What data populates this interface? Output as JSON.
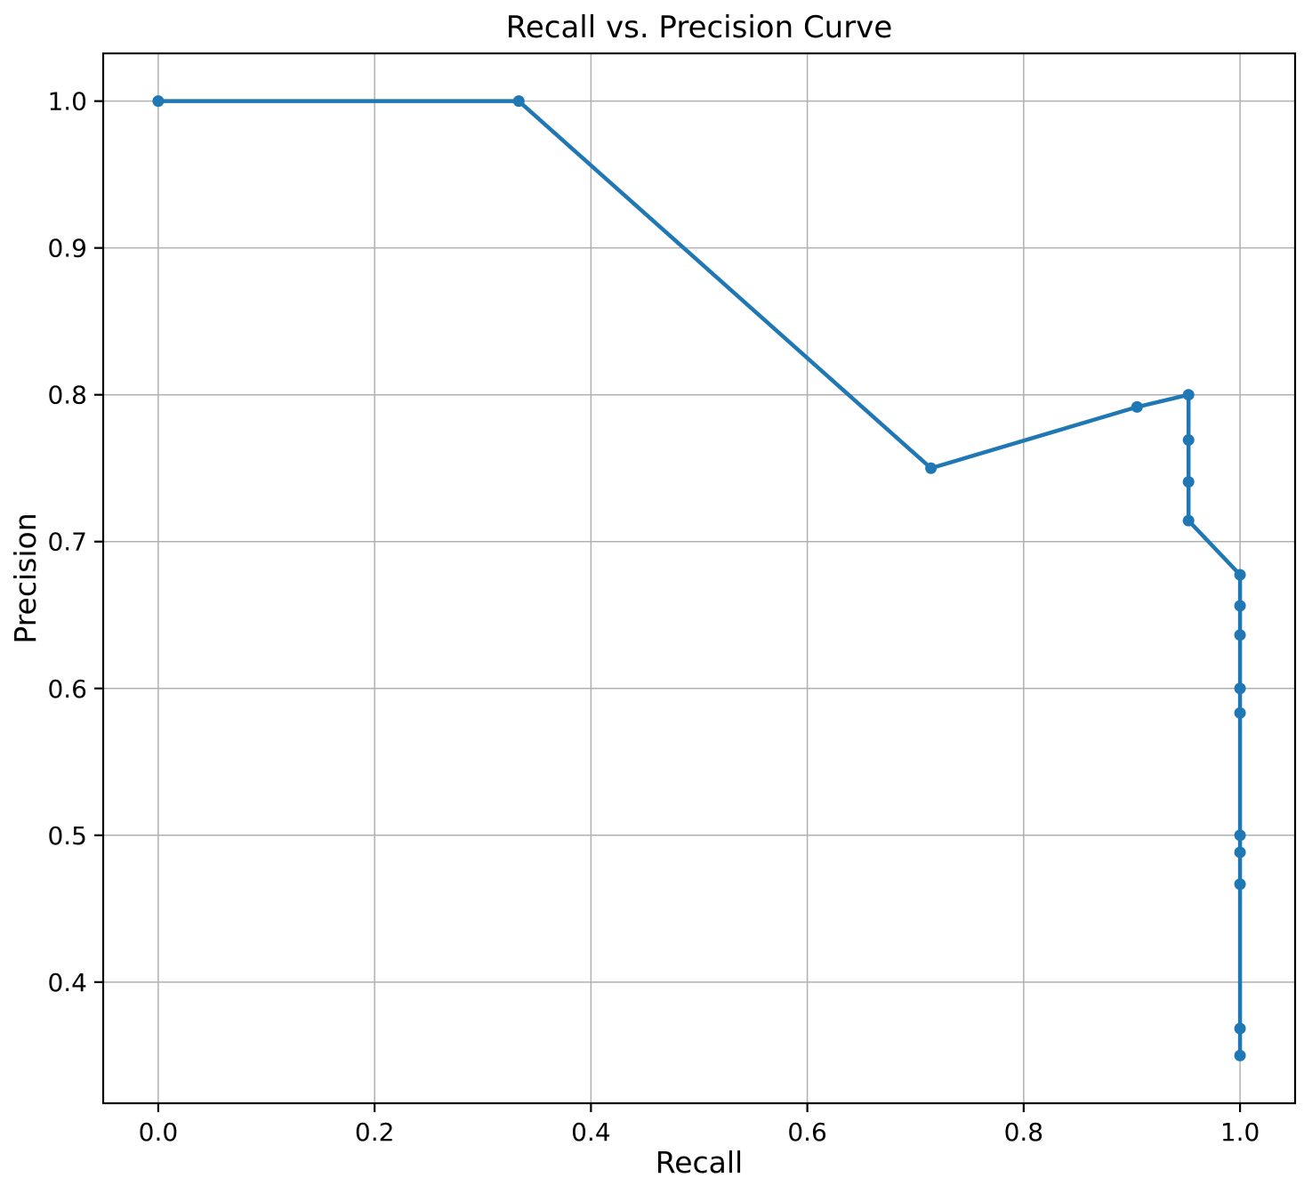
{
  "chart_data": {
    "type": "line",
    "title": "Recall vs. Precision Curve",
    "xlabel": "Recall",
    "ylabel": "Precision",
    "grid": true,
    "legend_position": "none",
    "grid_color": "#b0b0b0",
    "spine_color": "#000000",
    "background_color": "#ffffff",
    "xlim": [
      -0.0509,
      1.0509
    ],
    "ylim": [
      0.3175,
      1.0325
    ],
    "xticks": {
      "values": [
        0.0,
        0.2,
        0.4,
        0.6,
        0.8,
        1.0
      ],
      "labels": [
        "0.0",
        "0.2",
        "0.4",
        "0.6",
        "0.8",
        "1.0"
      ]
    },
    "yticks": {
      "values": [
        0.4,
        0.5,
        0.6,
        0.7,
        0.8,
        0.9,
        1.0
      ],
      "labels": [
        "0.4",
        "0.5",
        "0.6",
        "0.7",
        "0.8",
        "0.9",
        "1.0"
      ]
    },
    "series": [
      {
        "name": "precision-recall-curve",
        "color": "#1f77b4",
        "marker": "circle",
        "points": [
          [
            0.0,
            1.0
          ],
          [
            0.3333,
            1.0
          ],
          [
            0.7143,
            0.75
          ],
          [
            0.9048,
            0.7917
          ],
          [
            0.9524,
            0.8
          ],
          [
            0.9524,
            0.7692
          ],
          [
            0.9524,
            0.7407
          ],
          [
            0.9524,
            0.7143
          ],
          [
            1.0,
            0.6774
          ],
          [
            1.0,
            0.6563
          ],
          [
            1.0,
            0.6364
          ],
          [
            1.0,
            0.6
          ],
          [
            1.0,
            0.5833
          ],
          [
            1.0,
            0.5
          ],
          [
            1.0,
            0.4884
          ],
          [
            1.0,
            0.4667
          ],
          [
            1.0,
            0.3684
          ],
          [
            1.0,
            0.35
          ]
        ]
      }
    ]
  }
}
